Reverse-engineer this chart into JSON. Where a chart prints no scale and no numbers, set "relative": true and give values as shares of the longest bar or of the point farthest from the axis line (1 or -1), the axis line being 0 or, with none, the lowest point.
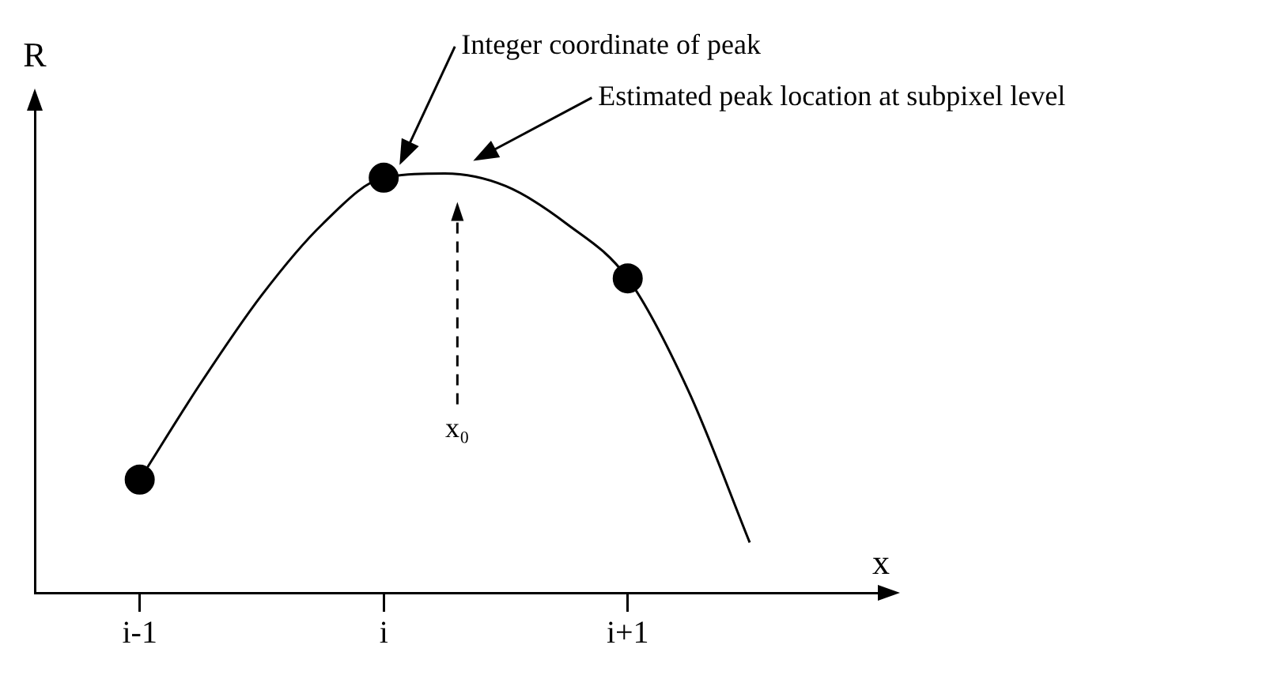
{
  "chart_data": {
    "type": "line",
    "relative": true,
    "xlabel": "x",
    "ylabel": "R",
    "categories": [
      "i-1",
      null,
      null,
      null,
      "i",
      null,
      null,
      null,
      "i+1",
      null,
      null
    ],
    "series": [
      {
        "color": "#000000",
        "marker": "none",
        "values": [
          0.27,
          0.5,
          0.71,
          0.88,
          0.99,
          1.0,
          0.97,
          0.88,
          0.75,
          0.48,
          0.12
        ]
      },
      {
        "type": "scatter",
        "color": "#000000",
        "marker": "circle",
        "values": [
          0.27,
          null,
          null,
          null,
          0.99,
          null,
          null,
          null,
          0.75,
          null,
          null
        ]
      }
    ],
    "annotations": [
      "Integer coordinate of peak",
      "Estimated peak location at subpixel level",
      "x₀"
    ],
    "grid": false,
    "legend": false
  }
}
